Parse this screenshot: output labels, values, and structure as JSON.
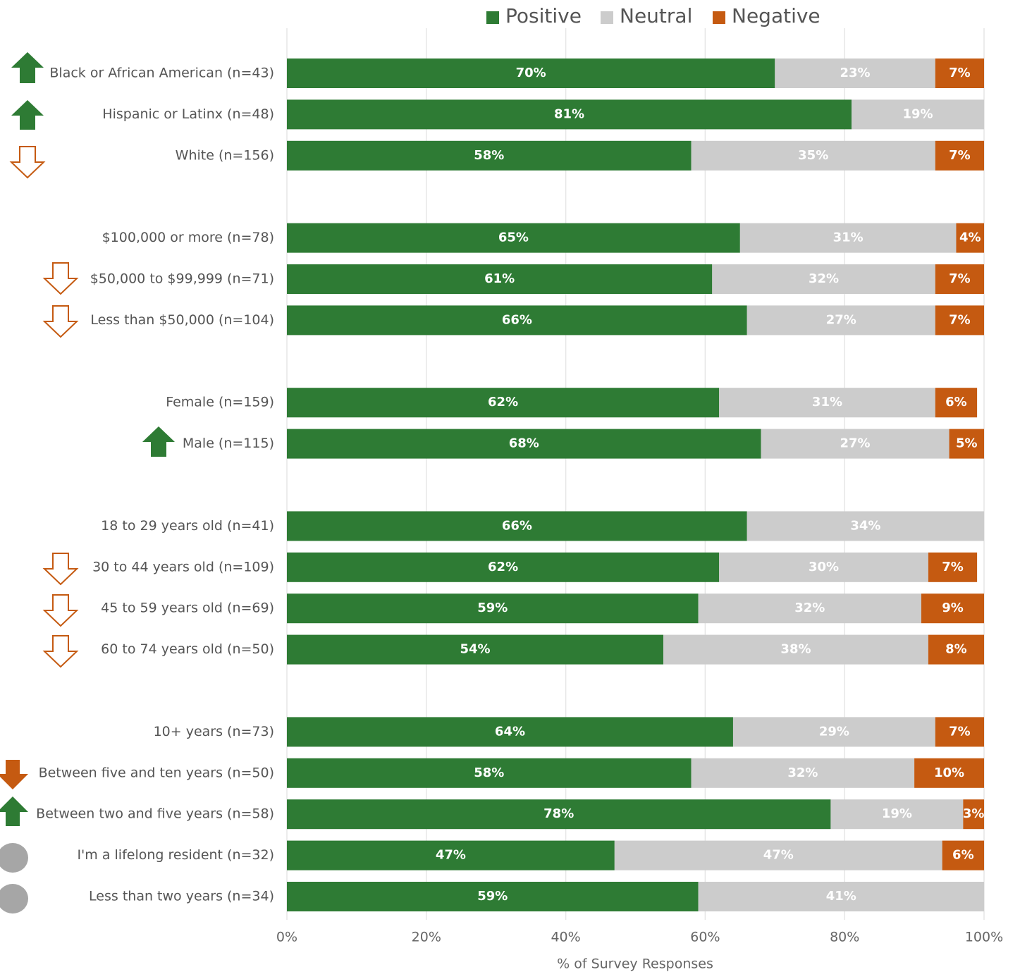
{
  "chart_data": {
    "type": "stacked_barh",
    "x_label": "% of Survey Responses",
    "categories": [
      "Black or African American (n=43)",
      "Hispanic or Latinx (n=48)",
      "White (n=156)",
      null,
      "$100,000 or more (n=78)",
      "$50,000 to $99,999 (n=71)",
      "Less than $50,000 (n=104)",
      null,
      "Female (n=159)",
      "Male (n=115)",
      null,
      "18 to 29 years old (n=41)",
      "30 to 44 years old (n=109)",
      "45 to 59 years old (n=69)",
      "60 to 74 years old (n=50)",
      null,
      "10+ years (n=73)",
      "Between five and ten years (n=50)",
      "Between two and five years (n=58)",
      "I'm a lifelong resident (n=32)",
      "Less than two years (n=34)"
    ],
    "series": [
      {
        "name": "Positive",
        "color": "#2e7b34",
        "label_color": "#ffffff",
        "values": [
          70,
          81,
          58,
          null,
          65,
          61,
          66,
          null,
          62,
          68,
          null,
          66,
          62,
          59,
          54,
          null,
          64,
          58,
          78,
          47,
          59
        ],
        "value_labels": [
          "70%",
          "81%",
          "58%",
          null,
          "65%",
          "61%",
          "66%",
          null,
          "62%",
          "68%",
          null,
          "66%",
          "62%",
          "59%",
          "54%",
          null,
          "64%",
          "58%",
          "78%",
          "47%",
          "59%"
        ]
      },
      {
        "name": "Neutral",
        "color": "#cccccc",
        "label_color": "#ffffff",
        "values": [
          23,
          19,
          35,
          null,
          31,
          32,
          27,
          null,
          31,
          27,
          null,
          34,
          30,
          32,
          38,
          null,
          29,
          32,
          19,
          47,
          41
        ],
        "value_labels": [
          "23%",
          "19%",
          "35%",
          null,
          "31%",
          "32%",
          "27%",
          null,
          "31%",
          "27%",
          null,
          "34%",
          "30%",
          "32%",
          "38%",
          null,
          "29%",
          "32%",
          "19%",
          "47%",
          "41%"
        ]
      },
      {
        "name": "Negative",
        "color": "#c55a11",
        "label_color": "#ffffff",
        "values": [
          7,
          null,
          7,
          null,
          4,
          7,
          7,
          null,
          6,
          5,
          null,
          null,
          7,
          9,
          8,
          null,
          7,
          10,
          3,
          6,
          null
        ],
        "value_labels": [
          "7%",
          null,
          "7%",
          null,
          "4%",
          "7%",
          "7%",
          null,
          "6%",
          "5%",
          null,
          null,
          "7%",
          "9%",
          "8%",
          null,
          "7%",
          "10%",
          "3%",
          "6%",
          null
        ]
      }
    ],
    "xlim": [
      0,
      100
    ],
    "xticks": [
      {
        "value": 0,
        "label": "0%"
      },
      {
        "value": 20,
        "label": "20%"
      },
      {
        "value": 40,
        "label": "40%"
      },
      {
        "value": 60,
        "label": "60%"
      },
      {
        "value": 80,
        "label": "80%"
      },
      {
        "value": 100,
        "label": "100%"
      }
    ],
    "grid": true,
    "legend": "top"
  }
}
